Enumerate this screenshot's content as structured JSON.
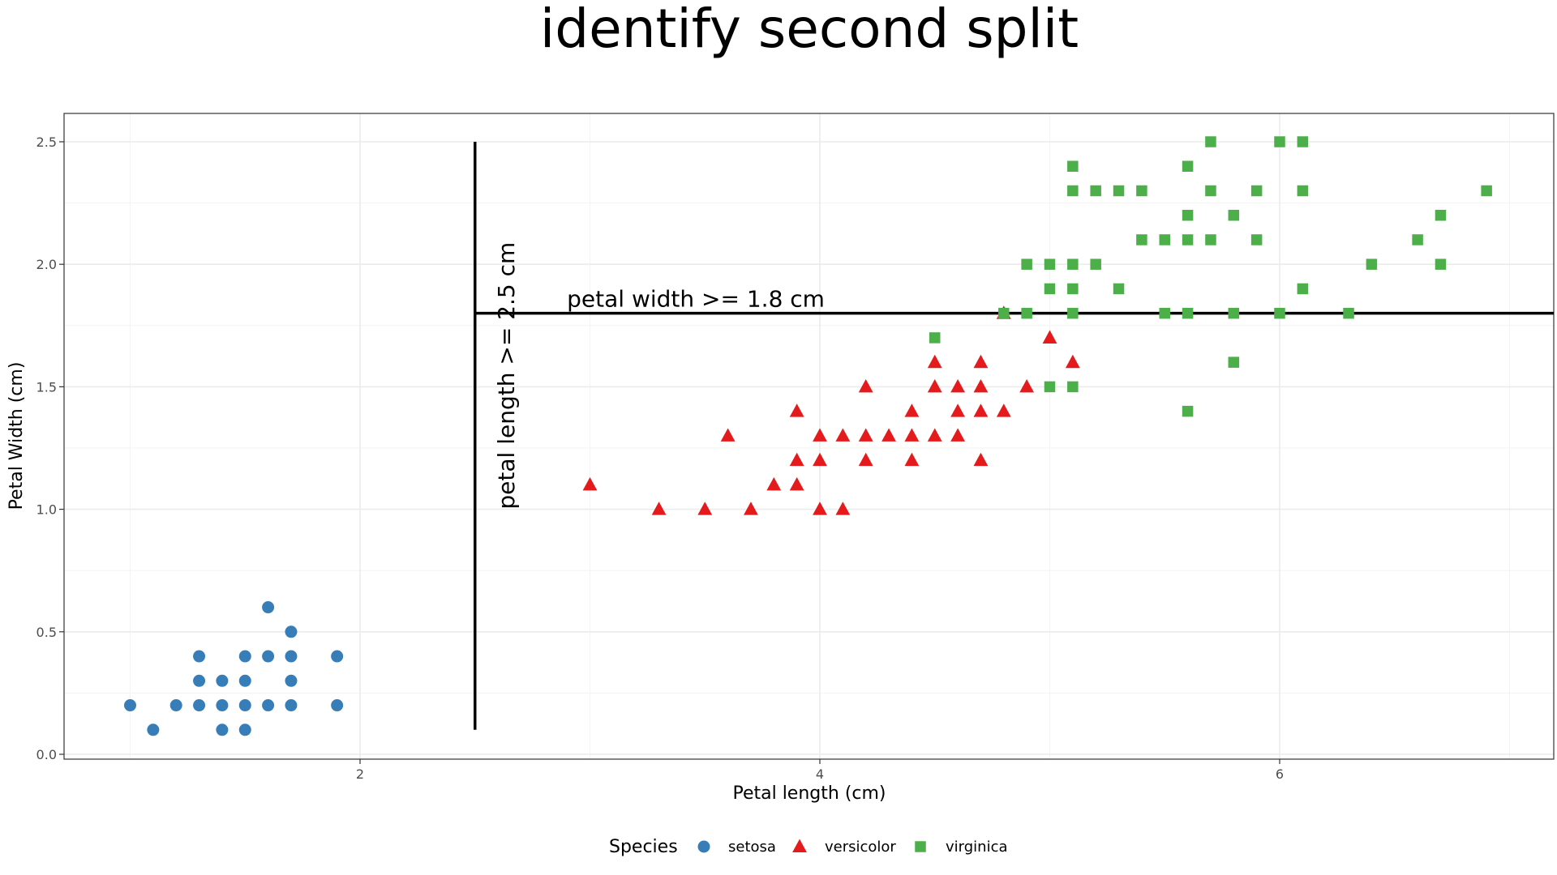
{
  "chart_data": {
    "type": "scatter",
    "title": "identify second split",
    "xlabel": "Petal length (cm)",
    "ylabel": "Petal Width (cm)",
    "xlim": [
      0.705,
      7.195
    ],
    "ylim": [
      0.0,
      2.5
    ],
    "x_ticks": [
      2,
      4,
      6
    ],
    "x_tick_labels": [
      "2",
      "4",
      "6"
    ],
    "y_ticks": [
      0.0,
      0.5,
      1.0,
      1.5,
      2.0,
      2.5
    ],
    "y_tick_labels": [
      "0.0",
      "0.5",
      "1.0",
      "1.5",
      "2.0",
      "2.5"
    ],
    "grid": true,
    "legend": {
      "title": "Species",
      "position": "bottom"
    },
    "series": [
      {
        "name": "setosa",
        "color": "#377eb8",
        "marker": "circle",
        "points": [
          [
            1.0,
            0.2
          ],
          [
            1.1,
            0.1
          ],
          [
            1.2,
            0.2
          ],
          [
            1.3,
            0.2
          ],
          [
            1.3,
            0.3
          ],
          [
            1.3,
            0.4
          ],
          [
            1.4,
            0.1
          ],
          [
            1.4,
            0.2
          ],
          [
            1.4,
            0.3
          ],
          [
            1.5,
            0.1
          ],
          [
            1.5,
            0.2
          ],
          [
            1.5,
            0.3
          ],
          [
            1.5,
            0.4
          ],
          [
            1.6,
            0.2
          ],
          [
            1.6,
            0.4
          ],
          [
            1.6,
            0.6
          ],
          [
            1.7,
            0.2
          ],
          [
            1.7,
            0.3
          ],
          [
            1.7,
            0.4
          ],
          [
            1.7,
            0.5
          ],
          [
            1.9,
            0.2
          ],
          [
            1.9,
            0.4
          ]
        ]
      },
      {
        "name": "versicolor",
        "color": "#e41a1c",
        "marker": "triangle",
        "points": [
          [
            3.0,
            1.1
          ],
          [
            3.3,
            1.0
          ],
          [
            3.5,
            1.0
          ],
          [
            3.6,
            1.3
          ],
          [
            3.7,
            1.0
          ],
          [
            3.8,
            1.1
          ],
          [
            3.9,
            1.1
          ],
          [
            3.9,
            1.2
          ],
          [
            3.9,
            1.4
          ],
          [
            4.0,
            1.0
          ],
          [
            4.0,
            1.2
          ],
          [
            4.0,
            1.3
          ],
          [
            4.1,
            1.0
          ],
          [
            4.1,
            1.3
          ],
          [
            4.2,
            1.2
          ],
          [
            4.2,
            1.3
          ],
          [
            4.2,
            1.5
          ],
          [
            4.3,
            1.3
          ],
          [
            4.4,
            1.2
          ],
          [
            4.4,
            1.3
          ],
          [
            4.4,
            1.4
          ],
          [
            4.5,
            1.3
          ],
          [
            4.5,
            1.5
          ],
          [
            4.5,
            1.6
          ],
          [
            4.6,
            1.3
          ],
          [
            4.6,
            1.4
          ],
          [
            4.6,
            1.5
          ],
          [
            4.7,
            1.2
          ],
          [
            4.7,
            1.4
          ],
          [
            4.7,
            1.5
          ],
          [
            4.7,
            1.6
          ],
          [
            4.8,
            1.4
          ],
          [
            4.8,
            1.8
          ],
          [
            4.9,
            1.5
          ],
          [
            5.0,
            1.7
          ],
          [
            5.1,
            1.6
          ]
        ]
      },
      {
        "name": "virginica",
        "color": "#4daf4a",
        "marker": "square",
        "points": [
          [
            4.5,
            1.7
          ],
          [
            4.8,
            1.8
          ],
          [
            4.9,
            1.8
          ],
          [
            4.9,
            2.0
          ],
          [
            5.0,
            1.5
          ],
          [
            5.0,
            1.9
          ],
          [
            5.0,
            2.0
          ],
          [
            5.1,
            1.5
          ],
          [
            5.1,
            1.8
          ],
          [
            5.1,
            1.9
          ],
          [
            5.1,
            2.0
          ],
          [
            5.1,
            2.3
          ],
          [
            5.1,
            2.4
          ],
          [
            5.2,
            2.0
          ],
          [
            5.2,
            2.3
          ],
          [
            5.3,
            1.9
          ],
          [
            5.3,
            2.3
          ],
          [
            5.4,
            2.1
          ],
          [
            5.4,
            2.3
          ],
          [
            5.5,
            1.8
          ],
          [
            5.5,
            2.1
          ],
          [
            5.6,
            1.4
          ],
          [
            5.6,
            1.8
          ],
          [
            5.6,
            2.1
          ],
          [
            5.6,
            2.2
          ],
          [
            5.6,
            2.4
          ],
          [
            5.7,
            2.1
          ],
          [
            5.7,
            2.3
          ],
          [
            5.7,
            2.5
          ],
          [
            5.8,
            1.6
          ],
          [
            5.8,
            1.8
          ],
          [
            5.8,
            2.2
          ],
          [
            5.9,
            2.1
          ],
          [
            5.9,
            2.3
          ],
          [
            6.0,
            1.8
          ],
          [
            6.0,
            2.5
          ],
          [
            6.1,
            1.9
          ],
          [
            6.1,
            2.3
          ],
          [
            6.1,
            2.5
          ],
          [
            6.3,
            1.8
          ],
          [
            6.4,
            2.0
          ],
          [
            6.6,
            2.1
          ],
          [
            6.7,
            2.0
          ],
          [
            6.7,
            2.2
          ],
          [
            6.9,
            2.3
          ]
        ]
      }
    ],
    "annotations": [
      {
        "type": "vline",
        "x": 2.5,
        "y_from": 0.1,
        "y_to": 2.5,
        "label": "petal length >= 2.5 cm",
        "label_x": 2.67,
        "label_y": 1.0,
        "label_rotation": -90
      },
      {
        "type": "hline",
        "y": 1.8,
        "x_from": 2.5,
        "x_to": 7.195,
        "label": "petal width >= 1.8 cm",
        "label_x": 2.9,
        "label_y": 1.8
      }
    ]
  }
}
